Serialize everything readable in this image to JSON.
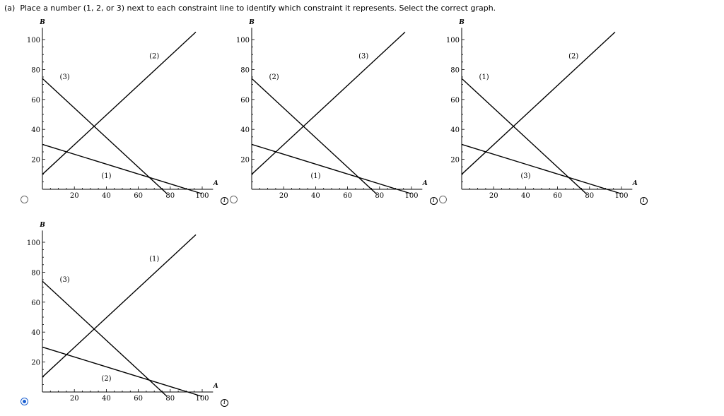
{
  "question": {
    "prefix": "(a)",
    "text": "Place a number (1, 2, or 3) next to each constraint line to identify which constraint it represents. Select the correct graph."
  },
  "info_glyph": "i",
  "axes": {
    "x_label": "A",
    "y_label": "B",
    "x_ticks": [
      "20",
      "40",
      "60",
      "80",
      "100"
    ],
    "y_ticks": [
      "20",
      "40",
      "60",
      "80",
      "100"
    ]
  },
  "chart_data": [
    {
      "type": "line",
      "xlabel": "A",
      "ylabel": "B",
      "xlim": [
        0,
        105
      ],
      "ylim": [
        0,
        105
      ],
      "series": [
        {
          "points": [
            [
              0,
              10
            ],
            [
              96,
              105
            ]
          ]
        },
        {
          "points": [
            [
              0,
              74
            ],
            [
              78,
              -3
            ]
          ]
        },
        {
          "points": [
            [
              0,
              30
            ],
            [
              100,
              -3
            ]
          ]
        }
      ],
      "annotations": [
        {
          "text": "(3)",
          "x": 14,
          "y": 75
        },
        {
          "text": "(2)",
          "x": 70,
          "y": 89
        },
        {
          "text": "(1)",
          "x": 40,
          "y": 9
        }
      ],
      "selected": false
    },
    {
      "type": "line",
      "xlabel": "A",
      "ylabel": "B",
      "xlim": [
        0,
        105
      ],
      "ylim": [
        0,
        105
      ],
      "series": [
        {
          "points": [
            [
              0,
              10
            ],
            [
              96,
              105
            ]
          ]
        },
        {
          "points": [
            [
              0,
              74
            ],
            [
              78,
              -3
            ]
          ]
        },
        {
          "points": [
            [
              0,
              30
            ],
            [
              100,
              -3
            ]
          ]
        }
      ],
      "annotations": [
        {
          "text": "(2)",
          "x": 14,
          "y": 75
        },
        {
          "text": "(3)",
          "x": 70,
          "y": 89
        },
        {
          "text": "(1)",
          "x": 40,
          "y": 9
        }
      ],
      "selected": false
    },
    {
      "type": "line",
      "xlabel": "A",
      "ylabel": "B",
      "xlim": [
        0,
        105
      ],
      "ylim": [
        0,
        105
      ],
      "series": [
        {
          "points": [
            [
              0,
              10
            ],
            [
              96,
              105
            ]
          ]
        },
        {
          "points": [
            [
              0,
              74
            ],
            [
              78,
              -3
            ]
          ]
        },
        {
          "points": [
            [
              0,
              30
            ],
            [
              100,
              -3
            ]
          ]
        }
      ],
      "annotations": [
        {
          "text": "(1)",
          "x": 14,
          "y": 75
        },
        {
          "text": "(2)",
          "x": 70,
          "y": 89
        },
        {
          "text": "(3)",
          "x": 40,
          "y": 9
        }
      ],
      "selected": false
    },
    {
      "type": "line",
      "xlabel": "A",
      "ylabel": "B",
      "xlim": [
        0,
        105
      ],
      "ylim": [
        0,
        105
      ],
      "series": [
        {
          "points": [
            [
              0,
              10
            ],
            [
              96,
              105
            ]
          ]
        },
        {
          "points": [
            [
              0,
              74
            ],
            [
              78,
              -3
            ]
          ]
        },
        {
          "points": [
            [
              0,
              30
            ],
            [
              100,
              -3
            ]
          ]
        }
      ],
      "annotations": [
        {
          "text": "(3)",
          "x": 14,
          "y": 75
        },
        {
          "text": "(1)",
          "x": 70,
          "y": 89
        },
        {
          "text": "(2)",
          "x": 40,
          "y": 9
        }
      ],
      "selected": true
    }
  ]
}
